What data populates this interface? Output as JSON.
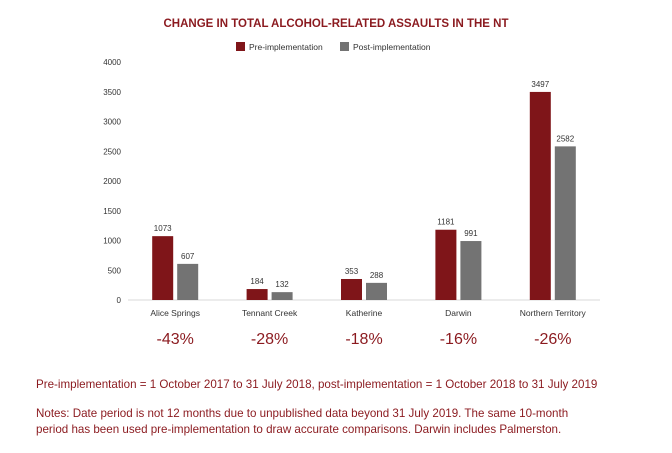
{
  "colors": {
    "pre": "#7f1519",
    "post": "#737373",
    "accent_text": "#8b1a1f",
    "axis_text": "#333333",
    "gridline": "#d9d9d9"
  },
  "chart_data": {
    "type": "bar",
    "title": "CHANGE IN TOTAL ALCOHOL-RELATED ASSAULTS IN THE NT",
    "xlabel": "",
    "ylabel": "",
    "ylim": [
      0,
      4000
    ],
    "yticks": [
      "0",
      "500",
      "1000",
      "1500",
      "2000",
      "2500",
      "3000",
      "3500",
      "4000"
    ],
    "grid": false,
    "legend_position": "top",
    "categories": [
      "Alice Springs",
      "Tennant Creek",
      "Katherine",
      "Darwin",
      "Northern Territory"
    ],
    "series": [
      {
        "name": "Pre-implementation",
        "values": [
          1073,
          184,
          353,
          1181,
          3497
        ],
        "labels": [
          "1073",
          "184",
          "353",
          "1181",
          "3497"
        ]
      },
      {
        "name": "Post-implementation",
        "values": [
          607,
          132,
          288,
          991,
          2582
        ],
        "labels": [
          "607",
          "132",
          "288",
          "991",
          "2582"
        ]
      }
    ],
    "changes": [
      "-43%",
      "-28%",
      "-18%",
      "-16%",
      "-26%"
    ]
  },
  "notes": {
    "period": "Pre-implementation = 1 October 2017 to 31 July 2018, post-implementation = 1 October 2018 to 31 July 2019",
    "line1": "Notes: Date period is not 12 months due to unpublished data beyond 31 July 2019. The same 10-month",
    "line2": "period has been used pre-implementation to draw accurate comparisons. Darwin includes Palmerston."
  }
}
